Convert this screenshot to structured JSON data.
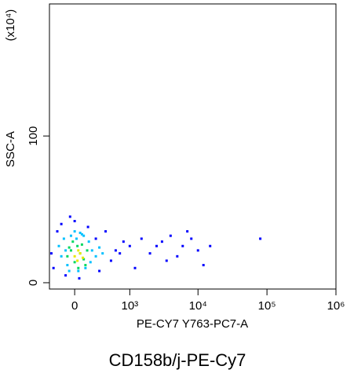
{
  "chart_data": {
    "type": "scatter",
    "title": "CD158b/j-PE-Cy7",
    "x_label": "PE-CY7 Y763-PC7-A",
    "y_label": "SSC-A",
    "y_multiplier": "(x10⁴)",
    "xscale": "asinh",
    "x_linear_width": 326,
    "xlim": [
      -308,
      1000000
    ],
    "xticks": [
      0,
      {
        "value": 1000,
        "label": "10³"
      },
      {
        "value": 10000,
        "label": "10⁴"
      },
      {
        "value": 100000,
        "label": "10⁵"
      },
      {
        "value": 1000000,
        "label": "10⁶"
      }
    ],
    "ylim": [
      -4.3,
      190
    ],
    "yticks": [
      0,
      100
    ],
    "series": [
      {
        "color": "#0000ff",
        "x": [
          -250,
          -200,
          -150,
          -100,
          -50,
          0,
          50,
          150,
          250,
          400,
          600,
          800,
          1000,
          1500,
          2000,
          3000,
          4000,
          5000,
          6000,
          8000,
          10000,
          15000,
          80000,
          -280,
          300,
          500,
          700,
          1200,
          2500,
          3500,
          7000,
          12000
        ],
        "y": [
          10,
          35,
          40,
          5,
          45,
          42,
          3,
          38,
          30,
          35,
          22,
          28,
          25,
          30,
          20,
          28,
          32,
          18,
          25,
          30,
          22,
          25,
          30,
          20,
          8,
          15,
          20,
          10,
          25,
          15,
          35,
          12
        ]
      },
      {
        "color": "#00c0ff",
        "x": [
          -180,
          -120,
          -80,
          -40,
          0,
          40,
          80,
          120,
          160,
          200,
          250,
          300,
          -150,
          -60,
          20,
          100,
          180,
          350,
          -100,
          60
        ],
        "y": [
          25,
          30,
          12,
          32,
          35,
          8,
          33,
          10,
          28,
          22,
          18,
          24,
          18,
          8,
          30,
          32,
          14,
          20,
          22,
          34
        ]
      },
      {
        "color": "#00d860",
        "x": [
          -80,
          -40,
          0,
          30,
          60,
          100,
          140,
          -20,
          80,
          120,
          40,
          -60
        ],
        "y": [
          18,
          22,
          14,
          25,
          20,
          16,
          22,
          28,
          26,
          12,
          10,
          24
        ]
      },
      {
        "color": "#e8e800",
        "x": [
          0,
          30,
          60,
          90,
          40
        ],
        "y": [
          18,
          15,
          20,
          17,
          22
        ]
      }
    ]
  }
}
